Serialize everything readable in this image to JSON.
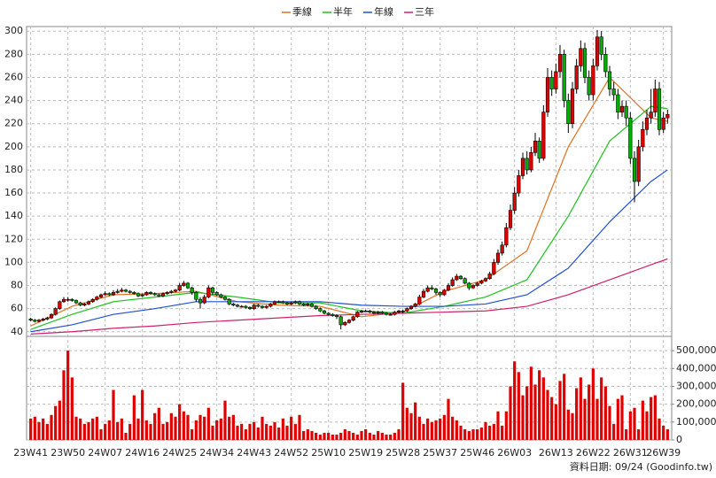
{
  "chart_data": {
    "type": "candlestick",
    "up_color": "#e00000",
    "down_color": "#00b000",
    "grid": true,
    "xlim": [
      -1,
      155
    ],
    "xticks": [
      {
        "value": 0,
        "label": "23W41"
      },
      {
        "value": 9,
        "label": "23W50"
      },
      {
        "value": 18,
        "label": "24W07"
      },
      {
        "value": 27,
        "label": "24W16"
      },
      {
        "value": 36,
        "label": "24W25"
      },
      {
        "value": 45,
        "label": "24W34"
      },
      {
        "value": 54,
        "label": "24W43"
      },
      {
        "value": 63,
        "label": "24W52"
      },
      {
        "value": 72,
        "label": "25W10"
      },
      {
        "value": 81,
        "label": "25W19"
      },
      {
        "value": 90,
        "label": "25W28"
      },
      {
        "value": 99,
        "label": "25W37"
      },
      {
        "value": 108,
        "label": "25W46"
      },
      {
        "value": 117,
        "label": "26W03"
      },
      {
        "value": 127,
        "label": "26W13"
      },
      {
        "value": 136,
        "label": "26W22"
      },
      {
        "value": 145,
        "label": "26W31"
      },
      {
        "value": 153,
        "label": "26W39"
      }
    ],
    "ylim": [
      36,
      304
    ],
    "yticks": [
      40,
      60,
      80,
      100,
      120,
      140,
      160,
      180,
      200,
      220,
      240,
      260,
      280,
      300
    ],
    "ohlc": [
      [
        51,
        52,
        49,
        50
      ],
      [
        50,
        51,
        48,
        49
      ],
      [
        49,
        51,
        48,
        50
      ],
      [
        50,
        52,
        49,
        51
      ],
      [
        51,
        53,
        50,
        52
      ],
      [
        52,
        56,
        51,
        55
      ],
      [
        55,
        61,
        54,
        60
      ],
      [
        60,
        67,
        59,
        66
      ],
      [
        66,
        70,
        65,
        68
      ],
      [
        68,
        70,
        66,
        68
      ],
      [
        68,
        69,
        66,
        67
      ],
      [
        67,
        68,
        64,
        65
      ],
      [
        65,
        66,
        62,
        63
      ],
      [
        63,
        65,
        62,
        64
      ],
      [
        64,
        67,
        63,
        66
      ],
      [
        66,
        69,
        65,
        68
      ],
      [
        68,
        71,
        67,
        70
      ],
      [
        70,
        73,
        69,
        72
      ],
      [
        72,
        75,
        71,
        73
      ],
      [
        73,
        74,
        71,
        72
      ],
      [
        72,
        76,
        71,
        74
      ],
      [
        74,
        77,
        73,
        75
      ],
      [
        75,
        78,
        74,
        76
      ],
      [
        76,
        77,
        74,
        75
      ],
      [
        75,
        76,
        73,
        74
      ],
      [
        74,
        75,
        72,
        73
      ],
      [
        73,
        74,
        70,
        71
      ],
      [
        71,
        73,
        70,
        72
      ],
      [
        72,
        75,
        71,
        74
      ],
      [
        74,
        75,
        72,
        73
      ],
      [
        73,
        74,
        71,
        72
      ],
      [
        72,
        73,
        70,
        71
      ],
      [
        71,
        74,
        70,
        73
      ],
      [
        73,
        75,
        72,
        74
      ],
      [
        74,
        76,
        73,
        75
      ],
      [
        75,
        77,
        74,
        76
      ],
      [
        76,
        82,
        75,
        80
      ],
      [
        80,
        84,
        79,
        82
      ],
      [
        82,
        83,
        77,
        78
      ],
      [
        78,
        79,
        72,
        74
      ],
      [
        74,
        75,
        66,
        68
      ],
      [
        68,
        70,
        60,
        65
      ],
      [
        65,
        72,
        64,
        70
      ],
      [
        70,
        80,
        69,
        78
      ],
      [
        78,
        79,
        72,
        74
      ],
      [
        74,
        75,
        71,
        72
      ],
      [
        72,
        73,
        69,
        70
      ],
      [
        70,
        71,
        67,
        68
      ],
      [
        68,
        69,
        63,
        64
      ],
      [
        64,
        65,
        62,
        63
      ],
      [
        63,
        64,
        61,
        62
      ],
      [
        62,
        63,
        61,
        62
      ],
      [
        62,
        63,
        60,
        61
      ],
      [
        61,
        62,
        59,
        60
      ],
      [
        60,
        64,
        59,
        63
      ],
      [
        63,
        64,
        61,
        62
      ],
      [
        62,
        63,
        60,
        61
      ],
      [
        61,
        63,
        60,
        62
      ],
      [
        62,
        65,
        61,
        64
      ],
      [
        64,
        67,
        63,
        66
      ],
      [
        66,
        67,
        65,
        66
      ],
      [
        66,
        67,
        64,
        65
      ],
      [
        65,
        66,
        63,
        64
      ],
      [
        64,
        66,
        63,
        65
      ],
      [
        65,
        67,
        64,
        66
      ],
      [
        66,
        67,
        63,
        64
      ],
      [
        64,
        65,
        62,
        63
      ],
      [
        63,
        65,
        62,
        64
      ],
      [
        64,
        65,
        61,
        62
      ],
      [
        62,
        63,
        59,
        60
      ],
      [
        60,
        61,
        57,
        58
      ],
      [
        58,
        59,
        55,
        56
      ],
      [
        56,
        57,
        54,
        55
      ],
      [
        55,
        56,
        53,
        54
      ],
      [
        54,
        55,
        51,
        53
      ],
      [
        53,
        54,
        42,
        46
      ],
      [
        46,
        49,
        45,
        48
      ],
      [
        48,
        51,
        47,
        50
      ],
      [
        50,
        54,
        49,
        53
      ],
      [
        53,
        58,
        52,
        57
      ],
      [
        57,
        59,
        56,
        58
      ],
      [
        58,
        59,
        57,
        58
      ],
      [
        58,
        59,
        56,
        57
      ],
      [
        57,
        58,
        55,
        56
      ],
      [
        56,
        58,
        55,
        57
      ],
      [
        57,
        58,
        55,
        56
      ],
      [
        56,
        57,
        54,
        55
      ],
      [
        55,
        56,
        54,
        55
      ],
      [
        55,
        58,
        54,
        57
      ],
      [
        57,
        59,
        56,
        58
      ],
      [
        58,
        59,
        56,
        58
      ],
      [
        58,
        61,
        57,
        60
      ],
      [
        60,
        63,
        59,
        62
      ],
      [
        62,
        65,
        61,
        64
      ],
      [
        64,
        72,
        63,
        70
      ],
      [
        70,
        77,
        69,
        75
      ],
      [
        75,
        80,
        74,
        78
      ],
      [
        78,
        80,
        76,
        77
      ],
      [
        77,
        78,
        72,
        74
      ],
      [
        74,
        75,
        70,
        72
      ],
      [
        72,
        77,
        71,
        76
      ],
      [
        76,
        82,
        75,
        80
      ],
      [
        80,
        87,
        79,
        85
      ],
      [
        85,
        90,
        84,
        88
      ],
      [
        88,
        89,
        85,
        86
      ],
      [
        86,
        87,
        81,
        82
      ],
      [
        82,
        83,
        76,
        78
      ],
      [
        78,
        81,
        77,
        80
      ],
      [
        80,
        83,
        79,
        82
      ],
      [
        82,
        85,
        81,
        84
      ],
      [
        84,
        87,
        83,
        86
      ],
      [
        86,
        92,
        85,
        90
      ],
      [
        90,
        103,
        89,
        100
      ],
      [
        100,
        111,
        98,
        108
      ],
      [
        108,
        118,
        106,
        115
      ],
      [
        115,
        134,
        113,
        130
      ],
      [
        130,
        150,
        128,
        145
      ],
      [
        145,
        165,
        142,
        160
      ],
      [
        160,
        180,
        157,
        175
      ],
      [
        175,
        195,
        172,
        190
      ],
      [
        190,
        196,
        176,
        180
      ],
      [
        180,
        200,
        178,
        195
      ],
      [
        195,
        212,
        192,
        205
      ],
      [
        205,
        208,
        186,
        190
      ],
      [
        190,
        236,
        188,
        230
      ],
      [
        230,
        268,
        226,
        260
      ],
      [
        260,
        266,
        244,
        250
      ],
      [
        250,
        272,
        246,
        265
      ],
      [
        265,
        288,
        260,
        280
      ],
      [
        280,
        284,
        234,
        240
      ],
      [
        240,
        246,
        212,
        220
      ],
      [
        220,
        256,
        216,
        250
      ],
      [
        250,
        276,
        246,
        270
      ],
      [
        270,
        292,
        265,
        285
      ],
      [
        285,
        290,
        255,
        260
      ],
      [
        260,
        266,
        240,
        245
      ],
      [
        245,
        276,
        240,
        270
      ],
      [
        270,
        301,
        266,
        295
      ],
      [
        295,
        300,
        275,
        280
      ],
      [
        280,
        286,
        260,
        265
      ],
      [
        265,
        270,
        244,
        250
      ],
      [
        250,
        256,
        240,
        245
      ],
      [
        245,
        250,
        224,
        230
      ],
      [
        230,
        240,
        226,
        235
      ],
      [
        235,
        240,
        218,
        225
      ],
      [
        225,
        230,
        185,
        190
      ],
      [
        190,
        196,
        152,
        170
      ],
      [
        170,
        206,
        166,
        200
      ],
      [
        200,
        222,
        196,
        215
      ],
      [
        215,
        232,
        210,
        225
      ],
      [
        225,
        250,
        220,
        230
      ],
      [
        230,
        258,
        226,
        250
      ],
      [
        250,
        256,
        210,
        215
      ],
      [
        215,
        230,
        212,
        225
      ],
      [
        225,
        232,
        220,
        228
      ]
    ],
    "ma_x": [
      0,
      10,
      20,
      30,
      40,
      50,
      60,
      70,
      80,
      90,
      100,
      110,
      120,
      130,
      140,
      150,
      154
    ],
    "series": [
      {
        "name": "季線",
        "color": "#e07020",
        "values": [
          45,
          62,
          72,
          73,
          75,
          66,
          63,
          62,
          53,
          57,
          75,
          85,
          110,
          200,
          260,
          225,
          222
        ]
      },
      {
        "name": "半年",
        "color": "#20c020",
        "values": [
          42,
          55,
          66,
          70,
          74,
          70,
          65,
          65,
          58,
          56,
          62,
          70,
          85,
          140,
          205,
          235,
          233
        ]
      },
      {
        "name": "年線",
        "color": "#2050d0",
        "values": [
          40,
          46,
          55,
          60,
          66,
          66,
          66,
          66,
          63,
          62,
          62,
          64,
          72,
          95,
          135,
          170,
          180
        ]
      },
      {
        "name": "三年",
        "color": "#d0206a",
        "values": [
          38,
          40,
          43,
          45,
          48,
          50,
          52,
          54,
          55,
          56,
          57,
          58,
          62,
          72,
          85,
          98,
          103
        ]
      }
    ],
    "volume": {
      "color": "#e00000",
      "ylim": [
        0,
        580000
      ],
      "yticks": [
        0,
        {
          "value": 100000,
          "label": "100,000"
        },
        {
          "value": 200000,
          "label": "200,000"
        },
        {
          "value": 300000,
          "label": "300,000"
        },
        {
          "value": 400000,
          "label": "400,000"
        },
        {
          "value": 500000,
          "label": "500,000"
        }
      ],
      "values": [
        120000,
        130000,
        100000,
        120000,
        90000,
        140000,
        190000,
        220000,
        390000,
        500000,
        350000,
        130000,
        120000,
        90000,
        100000,
        120000,
        130000,
        60000,
        90000,
        110000,
        280000,
        100000,
        120000,
        40000,
        90000,
        250000,
        120000,
        280000,
        110000,
        90000,
        150000,
        180000,
        90000,
        100000,
        150000,
        130000,
        200000,
        160000,
        140000,
        60000,
        110000,
        140000,
        130000,
        180000,
        80000,
        110000,
        120000,
        220000,
        130000,
        140000,
        80000,
        90000,
        60000,
        90000,
        100000,
        70000,
        130000,
        90000,
        80000,
        100000,
        70000,
        120000,
        80000,
        130000,
        90000,
        140000,
        50000,
        60000,
        50000,
        40000,
        30000,
        40000,
        40000,
        30000,
        30000,
        40000,
        60000,
        50000,
        40000,
        30000,
        50000,
        60000,
        40000,
        30000,
        50000,
        40000,
        30000,
        30000,
        40000,
        60000,
        320000,
        180000,
        150000,
        210000,
        130000,
        90000,
        120000,
        100000,
        110000,
        120000,
        140000,
        230000,
        130000,
        110000,
        80000,
        60000,
        50000,
        60000,
        60000,
        70000,
        100000,
        80000,
        90000,
        160000,
        80000,
        160000,
        300000,
        440000,
        380000,
        250000,
        300000,
        410000,
        310000,
        390000,
        350000,
        280000,
        240000,
        200000,
        330000,
        370000,
        170000,
        150000,
        290000,
        350000,
        230000,
        310000,
        400000,
        230000,
        350000,
        300000,
        190000,
        90000,
        230000,
        250000,
        60000,
        160000,
        180000,
        60000,
        220000,
        160000,
        240000,
        250000,
        120000,
        80000,
        60000
      ]
    },
    "source": "資料日期: 09/24  (Goodinfo.tw)"
  }
}
